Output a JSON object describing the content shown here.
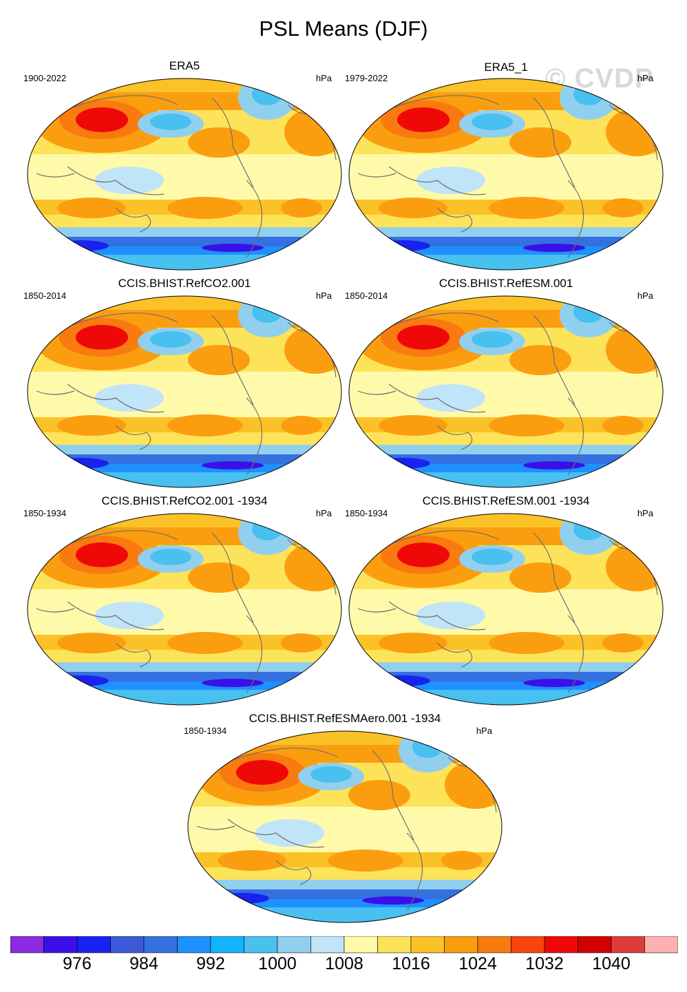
{
  "title": "PSL Means (DJF)",
  "watermark": "© CVDP",
  "panels": [
    {
      "title": "ERA5",
      "years": "1900-2022",
      "units": "hPa"
    },
    {
      "title": "ERA5_1",
      "years": "1979-2022",
      "units": "hPa"
    },
    {
      "title": "CCIS.BHIST.RefCO2.001",
      "years": "1850-2014",
      "units": "hPa"
    },
    {
      "title": "CCIS.BHIST.RefESM.001",
      "years": "1850-2014",
      "units": "hPa"
    },
    {
      "title": "CCIS.BHIST.RefCO2.001 -1934",
      "years": "1850-1934",
      "units": "hPa"
    },
    {
      "title": "CCIS.BHIST.RefESM.001 -1934",
      "years": "1850-1934",
      "units": "hPa"
    },
    {
      "title": "CCIS.BHIST.RefESMAero.001 -1934",
      "years": "1850-1934",
      "units": "hPa"
    }
  ],
  "colorbar": {
    "colors": [
      "#8a2be2",
      "#3a10e8",
      "#1a22f0",
      "#3a5ad8",
      "#3470e0",
      "#1e90ff",
      "#14b4fa",
      "#48c0f0",
      "#90d0ee",
      "#c0e4f8",
      "#fffaaa",
      "#fde35a",
      "#fbc228",
      "#fa9e10",
      "#f97a0e",
      "#f7450e",
      "#ef0808",
      "#d20000",
      "#dc3c3c",
      "#ffb0b0"
    ],
    "labels": [
      "976",
      "984",
      "992",
      "1000",
      "1008",
      "1016",
      "1024",
      "1032",
      "1040"
    ]
  }
}
